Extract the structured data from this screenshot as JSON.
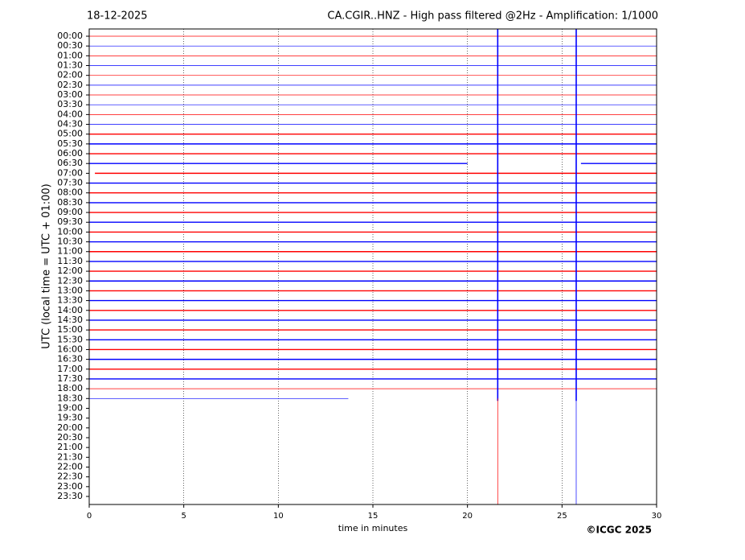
{
  "chart_data": {
    "type": "helicorder",
    "title_left": "18-12-2025",
    "title": "CA.CGIR..HNZ - High pass filtered @2Hz - Amplification: 1/1000",
    "y_label": "UTC (local time = UTC + 01:00)",
    "x_label": "time in minutes",
    "credit": "©ICGC 2025",
    "rows": [
      "00:00",
      "00:30",
      "01:00",
      "01:30",
      "02:00",
      "02:30",
      "03:00",
      "03:30",
      "04:00",
      "04:30",
      "05:00",
      "05:30",
      "06:00",
      "06:30",
      "07:00",
      "07:30",
      "08:00",
      "08:30",
      "09:00",
      "09:30",
      "10:00",
      "10:30",
      "11:00",
      "11:30",
      "12:00",
      "12:30",
      "13:00",
      "13:30",
      "14:00",
      "14:30",
      "15:00",
      "15:30",
      "16:00",
      "16:30",
      "17:00",
      "17:30",
      "18:00",
      "18:30",
      "19:00",
      "19:30",
      "20:00",
      "20:30",
      "21:00",
      "21:30",
      "22:00",
      "22:30",
      "23:00",
      "23:30"
    ],
    "colors": [
      "#ff0000",
      "#0000ff"
    ],
    "traces": [
      [
        [
          0,
          30
        ]
      ],
      [
        [
          0,
          30
        ]
      ],
      [
        [
          0,
          30
        ]
      ],
      [
        [
          0,
          30
        ]
      ],
      [
        [
          0,
          30
        ]
      ],
      [
        [
          0,
          30
        ]
      ],
      [
        [
          0,
          30
        ]
      ],
      [
        [
          0,
          30
        ]
      ],
      [
        [
          0,
          30
        ]
      ],
      [
        [
          0,
          30
        ]
      ],
      [
        [
          0,
          30
        ]
      ],
      [
        [
          0,
          30
        ]
      ],
      [
        [
          0,
          30
        ]
      ],
      [
        [
          0,
          20
        ],
        [
          26,
          30
        ]
      ],
      [
        [
          0.3,
          30
        ]
      ],
      [
        [
          0,
          30
        ]
      ],
      [
        [
          0,
          30
        ]
      ],
      [
        [
          0,
          30
        ]
      ],
      [
        [
          0,
          30
        ]
      ],
      [
        [
          0,
          30
        ]
      ],
      [
        [
          0,
          30
        ]
      ],
      [
        [
          0,
          30
        ]
      ],
      [
        [
          0,
          30
        ]
      ],
      [
        [
          0,
          30
        ]
      ],
      [
        [
          0,
          30
        ]
      ],
      [
        [
          0,
          30
        ]
      ],
      [
        [
          0,
          30
        ]
      ],
      [
        [
          0,
          30
        ]
      ],
      [
        [
          0,
          30
        ]
      ],
      [
        [
          0,
          30
        ]
      ],
      [
        [
          0,
          30
        ]
      ],
      [
        [
          0,
          30
        ]
      ],
      [
        [
          0,
          30
        ]
      ],
      [
        [
          0,
          30
        ]
      ],
      [
        [
          0,
          30
        ]
      ],
      [
        [
          0,
          30
        ]
      ],
      [
        [
          0,
          30
        ]
      ],
      [
        [
          0,
          13.7
        ]
      ],
      [],
      [],
      [],
      [],
      [],
      [],
      [],
      [],
      [],
      []
    ],
    "events": [
      21.6,
      25.75
    ],
    "xlim": [
      0,
      30
    ],
    "xticks": [
      0,
      5,
      10,
      15,
      20,
      25,
      30
    ],
    "grid": true
  }
}
